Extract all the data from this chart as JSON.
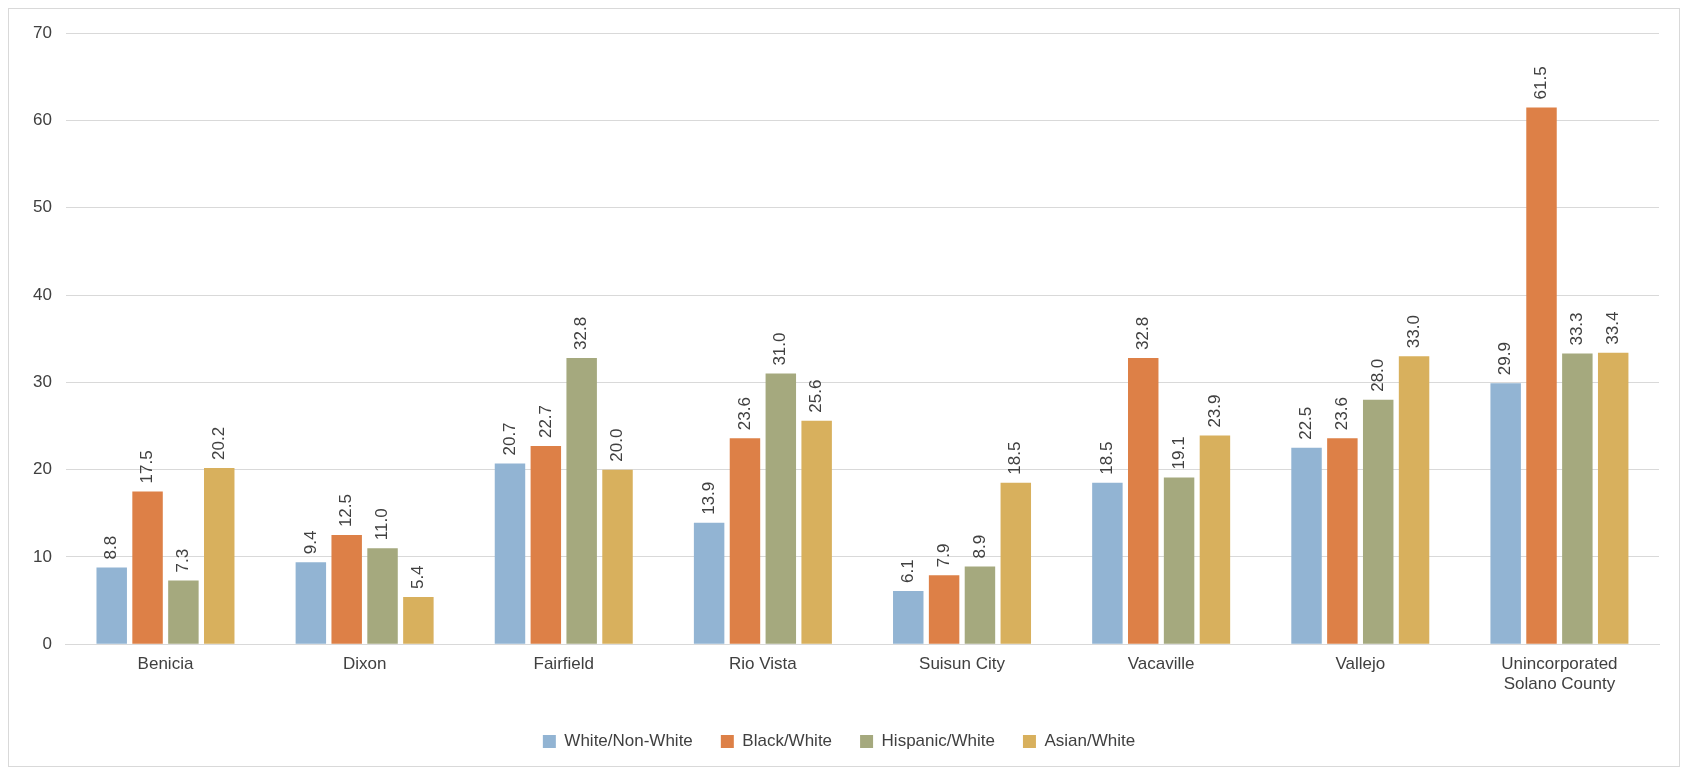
{
  "chart_data": {
    "type": "bar",
    "categories": [
      "Benicia",
      "Dixon",
      "Fairfield",
      "Rio Vista",
      "Suisun City",
      "Vacaville",
      "Vallejo",
      "Unincorporated Solano County"
    ],
    "series": [
      {
        "name": "White/Non-White",
        "color": "#92b4d3",
        "values": [
          8.8,
          9.4,
          20.7,
          13.9,
          6.1,
          18.5,
          22.5,
          29.9
        ],
        "value_labels": [
          "8.8",
          "9.4",
          "20.7",
          "13.9",
          "6.1",
          "18.5",
          "22.5",
          "29.9"
        ]
      },
      {
        "name": "Black/White",
        "color": "#dd8047",
        "values": [
          17.5,
          12.5,
          22.7,
          23.6,
          7.9,
          32.8,
          23.6,
          61.5
        ],
        "value_labels": [
          "17.5",
          "12.5",
          "22.7",
          "23.6",
          "7.9",
          "32.8",
          "23.6",
          "61.5"
        ]
      },
      {
        "name": "Hispanic/White",
        "color": "#a5a97e",
        "values": [
          7.3,
          11.0,
          32.8,
          31.0,
          8.9,
          19.1,
          28.0,
          33.3
        ],
        "value_labels": [
          "7.3",
          "11.0",
          "32.8",
          "31.0",
          "8.9",
          "19.1",
          "28.0",
          "33.3"
        ]
      },
      {
        "name": "Asian/White",
        "color": "#d8b05d",
        "values": [
          20.2,
          5.4,
          20.0,
          25.6,
          18.5,
          23.9,
          33.0,
          33.4
        ],
        "value_labels": [
          "20.2",
          "5.4",
          "20.0",
          "25.6",
          "18.5",
          "23.9",
          "33.0",
          "33.4"
        ]
      }
    ],
    "ylim": [
      0,
      70
    ],
    "yticks": [
      0,
      10,
      20,
      30,
      40,
      50,
      60,
      70
    ],
    "grid": "y",
    "legend": "bottom"
  }
}
